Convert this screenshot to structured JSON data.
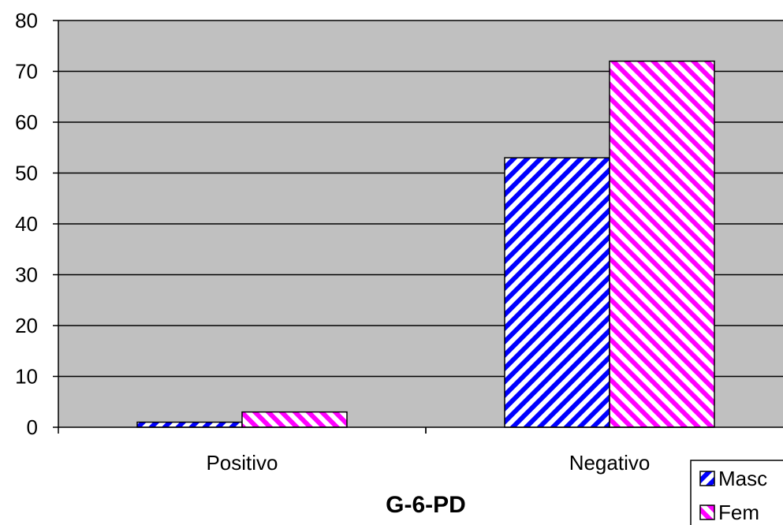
{
  "chart_data": {
    "type": "bar",
    "title": "",
    "xlabel": "G-6-PD",
    "ylabel": "",
    "categories": [
      "Positivo",
      "Negativo"
    ],
    "series": [
      {
        "name": "Masc",
        "values": [
          1,
          53
        ],
        "color": "#0000ff",
        "pattern": "diagonal-down"
      },
      {
        "name": "Fem",
        "values": [
          3,
          72
        ],
        "color": "#ff00ff",
        "pattern": "diagonal-up"
      }
    ],
    "ylim": [
      0,
      80
    ],
    "yticks": [
      0,
      10,
      20,
      30,
      40,
      50,
      60,
      70,
      80
    ],
    "grid": true,
    "plot_background": "#c0c0c0",
    "legend_position": "bottom-right"
  }
}
